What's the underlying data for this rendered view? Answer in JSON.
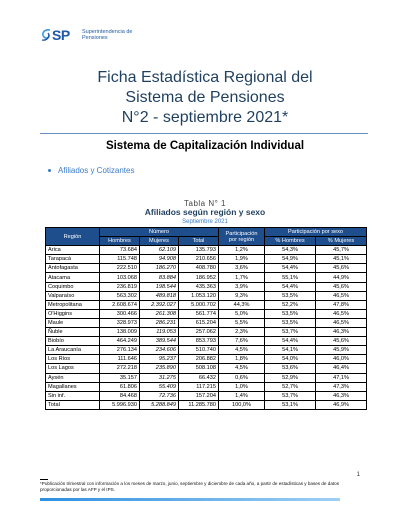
{
  "header": {
    "logo_mark": "SP",
    "logo_line1": "Superintendencia de",
    "logo_line2": "Pensiones",
    "logo_icon": "swirl-icon"
  },
  "title": {
    "line1": "Ficha Estadística Regional del",
    "line2": "Sistema de Pensiones",
    "line3": "N°2 - septiembre 2021*"
  },
  "section_title": "Sistema de Capitalización Individual",
  "bullet": "Afiliados y Cotizantes",
  "table": {
    "caption": "Tabla N° 1",
    "title": "Afiliados según región y sexo",
    "period": "Septiembre 2021",
    "header_region": "Región",
    "header_numero": "Número",
    "header_participacion_region": "Participación por región",
    "header_participacion_sexo": "Participación por sexo",
    "col_hombres": "Hombres",
    "col_mujeres": "Mujeres",
    "col_total": "Total",
    "col_pct_hombres": "% Hombres",
    "col_pct_mujeres": "% Mujeres",
    "rows": [
      {
        "region": "Arica",
        "hombres": "73.684",
        "mujeres": "62.109",
        "total": "135.793",
        "part_region": "1,2%",
        "pct_h": "54,3%",
        "pct_m": "45,7%"
      },
      {
        "region": "Tarapacá",
        "hombres": "115.748",
        "mujeres": "94.908",
        "total": "210.656",
        "part_region": "1,9%",
        "pct_h": "54,9%",
        "pct_m": "45,1%"
      },
      {
        "region": "Antofagasta",
        "hombres": "222.510",
        "mujeres": "186.270",
        "total": "408.780",
        "part_region": "3,6%",
        "pct_h": "54,4%",
        "pct_m": "45,6%"
      },
      {
        "region": "Atacama",
        "hombres": "103.068",
        "mujeres": "83.884",
        "total": "186.952",
        "part_region": "1,7%",
        "pct_h": "55,1%",
        "pct_m": "44,9%"
      },
      {
        "region": "Coquimbo",
        "hombres": "236.819",
        "mujeres": "198.544",
        "total": "435.363",
        "part_region": "3,9%",
        "pct_h": "54,4%",
        "pct_m": "45,6%"
      },
      {
        "region": "Valparaíso",
        "hombres": "563.302",
        "mujeres": "489.818",
        "total": "1.053.120",
        "part_region": "9,3%",
        "pct_h": "53,5%",
        "pct_m": "46,5%"
      },
      {
        "region": "Metropolitana",
        "hombres": "2.608.674",
        "mujeres": "2.392.027",
        "total": "5.000.702",
        "part_region": "44,3%",
        "pct_h": "52,2%",
        "pct_m": "47,8%"
      },
      {
        "region": "O'Higgins",
        "hombres": "300.466",
        "mujeres": "261.308",
        "total": "561.774",
        "part_region": "5,0%",
        "pct_h": "53,5%",
        "pct_m": "46,5%"
      },
      {
        "region": "Maule",
        "hombres": "328.973",
        "mujeres": "286.231",
        "total": "615.204",
        "part_region": "5,5%",
        "pct_h": "53,5%",
        "pct_m": "46,5%"
      },
      {
        "region": "Ñuble",
        "hombres": "138.009",
        "mujeres": "119.053",
        "total": "257.062",
        "part_region": "2,3%",
        "pct_h": "53,7%",
        "pct_m": "46,3%"
      },
      {
        "region": "Biobío",
        "hombres": "464.249",
        "mujeres": "389.544",
        "total": "853.793",
        "part_region": "7,6%",
        "pct_h": "54,4%",
        "pct_m": "45,6%"
      },
      {
        "region": "La Araucanía",
        "hombres": "276.134",
        "mujeres": "234.606",
        "total": "510.740",
        "part_region": "4,5%",
        "pct_h": "54,1%",
        "pct_m": "45,9%"
      },
      {
        "region": "Los Ríos",
        "hombres": "111.646",
        "mujeres": "95.237",
        "total": "206.882",
        "part_region": "1,8%",
        "pct_h": "54,0%",
        "pct_m": "46,0%"
      },
      {
        "region": "Los Lagos",
        "hombres": "272.218",
        "mujeres": "235.890",
        "total": "508.108",
        "part_region": "4,5%",
        "pct_h": "53,6%",
        "pct_m": "46,4%"
      },
      {
        "region": "Aysén",
        "hombres": "35.157",
        "mujeres": "31.275",
        "total": "66.432",
        "part_region": "0,6%",
        "pct_h": "52,9%",
        "pct_m": "47,1%"
      },
      {
        "region": "Magallanes",
        "hombres": "61.806",
        "mujeres": "55.409",
        "total": "117.215",
        "part_region": "1,0%",
        "pct_h": "52,7%",
        "pct_m": "47,3%"
      },
      {
        "region": "Sin inf.",
        "hombres": "84.468",
        "mujeres": "72.736",
        "total": "157.204",
        "part_region": "1,4%",
        "pct_h": "53,7%",
        "pct_m": "46,3%"
      },
      {
        "region": "Total",
        "hombres": "5.996.930",
        "mujeres": "5.288.849",
        "total": "11.285.780",
        "part_region": "100,0%",
        "pct_h": "53,1%",
        "pct_m": "46,9%"
      }
    ]
  },
  "page_number": "1",
  "footnote": "*Publicación trimestral con información a los meses de marzo, junio, septiembre y diciembre de cada año, a partir de estadísticas y bases de datos proporcionadas por las AFP y el IPS.",
  "colors": {
    "header_bg": "#1f4e8c",
    "accent_blue": "#3a7bc8",
    "title_color": "#1f3f5f"
  }
}
